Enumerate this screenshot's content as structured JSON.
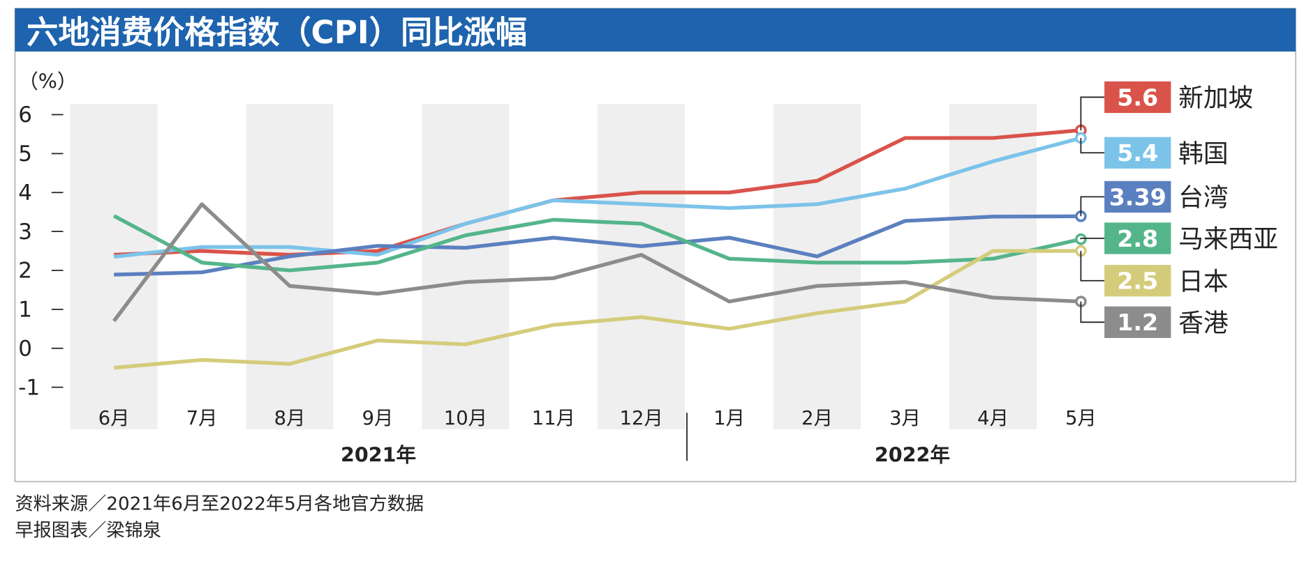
{
  "title": "六地消费价格指数（CPI）同比涨幅",
  "source": "资料来源／2021年6月至2022年5月各地官方数据",
  "credit": "早报图表／梁锦泉",
  "chart_data": {
    "type": "line",
    "ylabel": "（%）",
    "ylim": [
      -1,
      6
    ],
    "yticks": [
      "6",
      "5",
      "4",
      "3",
      "2",
      "1",
      "0",
      "-1"
    ],
    "ytick_values": [
      6,
      5,
      4,
      3,
      2,
      1,
      0,
      -1
    ],
    "categories": [
      "6月",
      "7月",
      "8月",
      "9月",
      "10月",
      "11月",
      "12月",
      "1月",
      "2月",
      "3月",
      "4月",
      "5月"
    ],
    "year_labels": [
      "2021年",
      "2022年"
    ],
    "legend_placement": "right",
    "series": [
      {
        "name": "新加坡",
        "label": "5.6",
        "color": "#d9534a",
        "values": [
          2.4,
          2.5,
          2.4,
          2.5,
          3.2,
          3.8,
          4.0,
          4.0,
          4.3,
          5.4,
          5.4,
          5.6
        ]
      },
      {
        "name": "韩国",
        "label": "5.4",
        "color": "#7cc3ea",
        "values": [
          2.35,
          2.6,
          2.6,
          2.4,
          3.2,
          3.8,
          3.7,
          3.6,
          3.7,
          4.1,
          4.8,
          5.4
        ]
      },
      {
        "name": "台湾",
        "label": "3.39",
        "color": "#5b80c0",
        "values": [
          1.89,
          1.95,
          2.36,
          2.63,
          2.58,
          2.84,
          2.62,
          2.84,
          2.36,
          3.27,
          3.38,
          3.39
        ]
      },
      {
        "name": "马来西亚",
        "label": "2.8",
        "color": "#55b58a",
        "values": [
          3.4,
          2.2,
          2.0,
          2.2,
          2.9,
          3.3,
          3.2,
          2.3,
          2.2,
          2.2,
          2.3,
          2.8
        ]
      },
      {
        "name": "日本",
        "label": "2.5",
        "color": "#d4cc7a",
        "values": [
          -0.5,
          -0.3,
          -0.4,
          0.2,
          0.1,
          0.6,
          0.8,
          0.5,
          0.9,
          1.2,
          2.5,
          2.5
        ]
      },
      {
        "name": "香港",
        "label": "1.2",
        "color": "#8c8c8c",
        "values": [
          0.7,
          3.7,
          1.6,
          1.4,
          1.7,
          1.8,
          2.4,
          1.2,
          1.6,
          1.7,
          1.3,
          1.2
        ]
      }
    ]
  },
  "colors": {
    "title_bar": "#1e63ad",
    "stripe": "#efefef"
  }
}
